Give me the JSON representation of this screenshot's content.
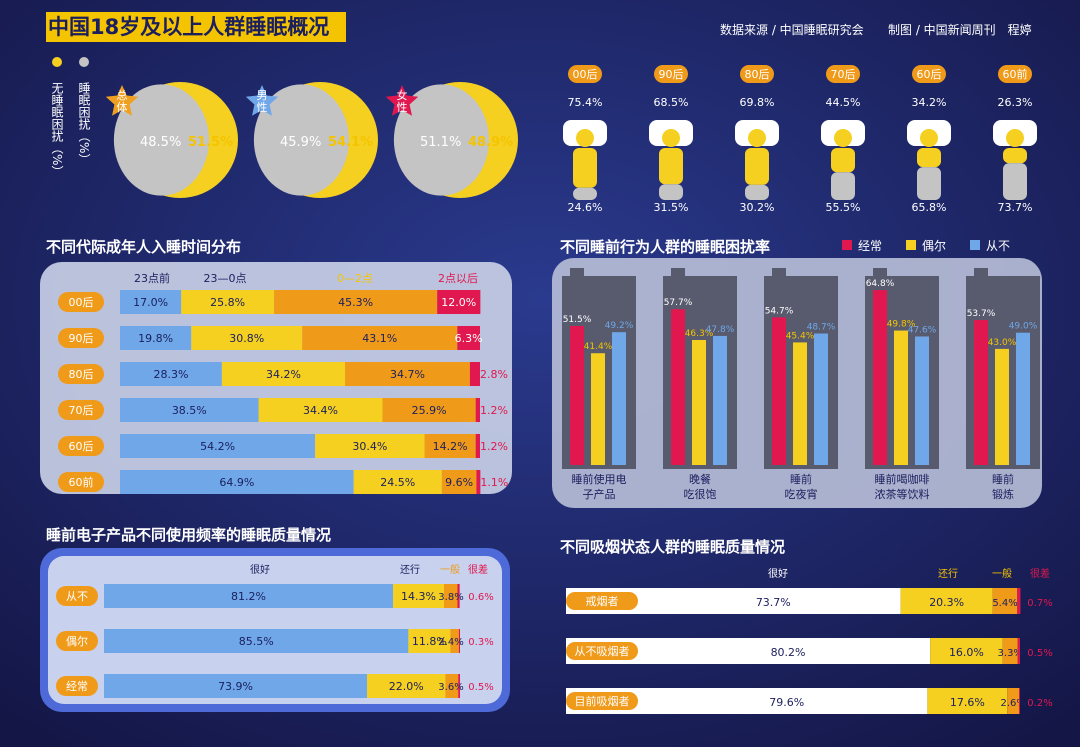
{
  "header": {
    "title": "中国18岁及以上人群睡眠概况",
    "source": "数据来源 / 中国睡眠研究会",
    "credit": "制图 / 中国新闻周刊　程婷"
  },
  "colors": {
    "background": "#1b1f5e",
    "yellow": "#f5d020",
    "gray": "#c4c4c4",
    "red": "#e0184f",
    "orange": "#f09a1a",
    "blue": "#6fa7e8",
    "label_yellow": "#f5c400"
  },
  "legend_top": {
    "no_trouble": "无睡眠困扰（%）",
    "trouble": "睡眠困扰（%）"
  },
  "legend_behavior": [
    "经常",
    "偶尔",
    "从不"
  ],
  "chart_data": [
    {
      "type": "pie",
      "title": "中国18岁及以上人群睡眠概况",
      "series_labels": [
        "睡眠困扰（%）",
        "无睡眠困扰（%）"
      ],
      "items": [
        {
          "label": "总体",
          "trouble": 48.5,
          "no_trouble": 51.5,
          "trouble_text": "48.5%",
          "no_trouble_text": "51.5%"
        },
        {
          "label": "男性",
          "trouble": 45.9,
          "no_trouble": 54.1,
          "trouble_text": "45.9%",
          "no_trouble_text": "54.1%"
        },
        {
          "label": "女性",
          "trouble": 51.1,
          "no_trouble": 48.9,
          "trouble_text": "51.1%",
          "no_trouble_text": "48.9%"
        }
      ]
    },
    {
      "type": "bar",
      "title": "",
      "categories": [
        "00后",
        "90后",
        "80后",
        "70后",
        "60后",
        "60前"
      ],
      "series": [
        {
          "name": "upper",
          "values": [
            75.4,
            68.5,
            69.8,
            44.5,
            34.2,
            26.3
          ],
          "labels": [
            "75.4%",
            "68.5%",
            "69.8%",
            "44.5%",
            "34.2%",
            "26.3%"
          ]
        },
        {
          "name": "lower",
          "values": [
            24.6,
            31.5,
            30.2,
            55.5,
            65.8,
            73.7
          ],
          "labels": [
            "24.6%",
            "31.5%",
            "30.2%",
            "55.5%",
            "65.8%",
            "73.7%"
          ]
        }
      ]
    },
    {
      "type": "bar",
      "title": "不同代际成年人入睡时间分布",
      "stacked": true,
      "categories": [
        "00后",
        "90后",
        "80后",
        "70后",
        "60后",
        "60前"
      ],
      "series": [
        {
          "name": "23点前",
          "values": [
            17.0,
            19.8,
            28.3,
            38.5,
            54.2,
            64.9
          ],
          "labels": [
            "17.0%",
            "19.8%",
            "28.3%",
            "38.5%",
            "54.2%",
            "64.9%"
          ]
        },
        {
          "name": "23—0点",
          "values": [
            25.8,
            30.8,
            34.2,
            34.4,
            30.4,
            24.5
          ],
          "labels": [
            "25.8%",
            "30.8%",
            "34.2%",
            "34.4%",
            "30.4%",
            "24.5%"
          ]
        },
        {
          "name": "0—2点",
          "values": [
            45.3,
            43.1,
            34.7,
            25.9,
            14.2,
            9.6
          ],
          "labels": [
            "45.3%",
            "43.1%",
            "34.7%",
            "25.9%",
            "14.2%",
            "9.6%"
          ]
        },
        {
          "name": "2点以后",
          "values": [
            12.0,
            6.3,
            2.8,
            1.2,
            1.2,
            1.1
          ],
          "labels": [
            "12.0%",
            "6.3%",
            "2.8%",
            "1.2%",
            "1.2%",
            "1.1%"
          ]
        }
      ]
    },
    {
      "type": "bar",
      "title": "不同睡前行为人群的睡眠困扰率",
      "categories": [
        "睡前使用电子产品",
        "晚餐吃很饱",
        "睡前吃夜宵",
        "睡前喝咖啡浓茶等饮料",
        "睡前锻炼"
      ],
      "series": [
        {
          "name": "经常",
          "values": [
            51.5,
            57.7,
            54.7,
            64.8,
            53.7
          ],
          "labels": [
            "51.5%",
            "57.7%",
            "54.7%",
            "64.8%",
            "53.7%"
          ]
        },
        {
          "name": "偶尔",
          "values": [
            41.4,
            46.3,
            45.4,
            49.8,
            43.0
          ],
          "labels": [
            "41.4%",
            "46.3%",
            "45.4%",
            "49.8%",
            "43.0%"
          ]
        },
        {
          "name": "从不",
          "values": [
            49.2,
            47.8,
            48.7,
            47.6,
            49.0
          ],
          "labels": [
            "49.2%",
            "47.8%",
            "48.7%",
            "47.6%",
            "49.0%"
          ]
        }
      ]
    },
    {
      "type": "bar",
      "title": "睡前电子产品不同使用频率的睡眠质量情况",
      "stacked": true,
      "categories": [
        "从不",
        "偶尔",
        "经常"
      ],
      "series": [
        {
          "name": "很好",
          "values": [
            81.2,
            85.5,
            73.9
          ],
          "labels": [
            "81.2%",
            "85.5%",
            "73.9%"
          ]
        },
        {
          "name": "还行",
          "values": [
            14.3,
            11.8,
            22.0
          ],
          "labels": [
            "14.3%",
            "11.8%",
            "22.0%"
          ]
        },
        {
          "name": "一般",
          "values": [
            3.8,
            2.4,
            3.6
          ],
          "labels": [
            "3.8%",
            "2.4%",
            "3.6%"
          ]
        },
        {
          "name": "很差",
          "values": [
            0.6,
            0.3,
            0.5
          ],
          "labels": [
            "0.6%",
            "0.3%",
            "0.5%"
          ]
        }
      ]
    },
    {
      "type": "bar",
      "title": "不同吸烟状态人群的睡眠质量情况",
      "stacked": true,
      "categories": [
        "戒烟者",
        "从不吸烟者",
        "目前吸烟者"
      ],
      "series": [
        {
          "name": "很好",
          "values": [
            73.7,
            80.2,
            79.6
          ],
          "labels": [
            "73.7%",
            "80.2%",
            "79.6%"
          ]
        },
        {
          "name": "还行",
          "values": [
            20.3,
            16.0,
            17.6
          ],
          "labels": [
            "20.3%",
            "16.0%",
            "17.6%"
          ]
        },
        {
          "name": "一般",
          "values": [
            5.4,
            3.3,
            2.6
          ],
          "labels": [
            "5.4%",
            "3.3%",
            "2.6%"
          ]
        },
        {
          "name": "很差",
          "values": [
            0.7,
            0.5,
            0.2
          ],
          "labels": [
            "0.7%",
            "0.5%",
            "0.2%"
          ]
        }
      ]
    }
  ]
}
